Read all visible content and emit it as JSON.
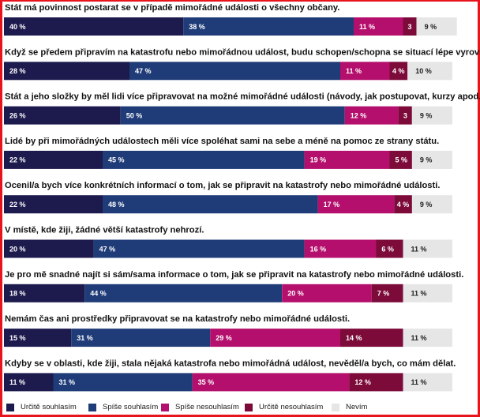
{
  "chart_data": {
    "type": "bar",
    "orientation": "horizontal",
    "stacked": true,
    "xlim": [
      0,
      100
    ],
    "unit": "%",
    "grid": false,
    "legend_position": "bottom",
    "categories": [
      "Stát má povinnost postarat se v případě mimořádné události o všechny občany.",
      "Když se předem připravím na katastrofu nebo mimořádnou událost, budu schopen/schopna se situací lépe vyrovnat.",
      "Stát a jeho složky by měl lidi více připravovat na možné mimořádné události (návody, jak postupovat, kurzy apod.).",
      "Lidé by při mimořádných událostech měli více spoléhat sami na sebe a méně na pomoc ze strany státu.",
      "Ocenil/a bych více konkrétních informací o tom, jak se připravit na katastrofy nebo mimořádné události.",
      "V místě, kde žiji, žádné větší katastrofy nehrozí.",
      "Je pro mě snadné najít si sám/sama informace o tom, jak se připravit na katastrofy nebo mimořádné události.",
      "Nemám čas ani prostředky připravovat se na katastrofy nebo mimořádné události.",
      "Kdyby se v oblasti, kde žiji, stala nějaká katastrofa nebo mimořádná událost, nevěděl/a bych, co mám dělat."
    ],
    "series": [
      {
        "name": "Určitě souhlasím",
        "color": "#1d1a4e",
        "text_color": "#ffffff",
        "values": [
          40,
          28,
          26,
          22,
          22,
          20,
          18,
          15,
          11
        ],
        "labels": [
          "40 %",
          "28 %",
          "26 %",
          "22 %",
          "22 %",
          "20 %",
          "18 %",
          "15 %",
          "11 %"
        ]
      },
      {
        "name": "Spíše souhlasím",
        "color": "#1f3c78",
        "text_color": "#ffffff",
        "values": [
          38,
          47,
          50,
          45,
          48,
          47,
          44,
          31,
          31
        ],
        "labels": [
          "38 %",
          "47 %",
          "50 %",
          "45 %",
          "48 %",
          "47 %",
          "44 %",
          "31 %",
          "31 %"
        ]
      },
      {
        "name": "Spíše nesouhlasím",
        "color": "#b40f6c",
        "text_color": "#ffffff",
        "values": [
          11,
          11,
          12,
          19,
          17,
          16,
          20,
          29,
          35
        ],
        "labels": [
          "11 %",
          "11 %",
          "12 %",
          "19 %",
          "17 %",
          "16 %",
          "20 %",
          "29 %",
          "35 %"
        ]
      },
      {
        "name": "Určitě nesouhlasím",
        "color": "#7d0b3a",
        "text_color": "#ffffff",
        "values": [
          3,
          4,
          3,
          5,
          4,
          6,
          7,
          14,
          12
        ],
        "labels": [
          "3",
          "4 %",
          "3",
          "5 %",
          "4 %",
          "6 %",
          "7 %",
          "14 %",
          "12 %"
        ]
      },
      {
        "name": "Nevím",
        "color": "#e6e6e6",
        "text_color": "#222222",
        "values": [
          9,
          10,
          9,
          9,
          9,
          11,
          11,
          11,
          11
        ],
        "labels": [
          "9 %",
          "10 %",
          "9 %",
          "9 %",
          "9 %",
          "11 %",
          "11 %",
          "11 %",
          "11 %"
        ]
      }
    ]
  }
}
